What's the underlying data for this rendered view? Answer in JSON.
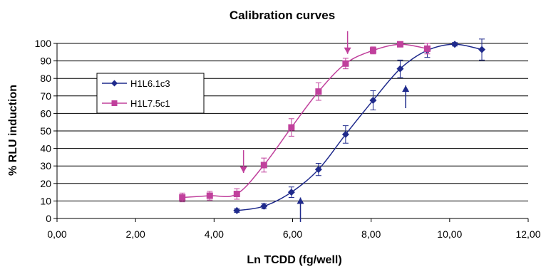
{
  "chart_data": {
    "type": "line",
    "title": "Calibration curves",
    "xlabel": "Ln TCDD (fg/well)",
    "ylabel": "% RLU induction",
    "xlim": [
      0,
      12
    ],
    "ylim": [
      0,
      100
    ],
    "x_ticks": [
      "0,00",
      "2,00",
      "4,00",
      "6,00",
      "8,00",
      "10,00",
      "12,00"
    ],
    "y_ticks": [
      "0",
      "10",
      "20",
      "30",
      "40",
      "50",
      "60",
      "70",
      "80",
      "90",
      "100"
    ],
    "grid": "horizontal",
    "legend_position": "left",
    "series": [
      {
        "name": "H1L6.1c3",
        "color": "#1f2a8c",
        "marker": "diamond",
        "points": [
          {
            "x": 4.58,
            "y": 4.5,
            "err": 1
          },
          {
            "x": 5.27,
            "y": 7,
            "err": 1.5
          },
          {
            "x": 5.97,
            "y": 15,
            "err": 3
          },
          {
            "x": 6.66,
            "y": 28,
            "err": 3.5
          },
          {
            "x": 7.35,
            "y": 48,
            "err": 5
          },
          {
            "x": 8.05,
            "y": 67.5,
            "err": 5.5
          },
          {
            "x": 8.74,
            "y": 85.5,
            "err": 5
          },
          {
            "x": 9.43,
            "y": 96,
            "err": 4
          },
          {
            "x": 10.13,
            "y": 99.5,
            "err": 1
          },
          {
            "x": 10.82,
            "y": 96.5,
            "err": 6
          }
        ]
      },
      {
        "name": "H1L7.5c1",
        "color": "#c0409c",
        "marker": "square",
        "points": [
          {
            "x": 3.19,
            "y": 12,
            "err": 2.5
          },
          {
            "x": 3.89,
            "y": 13,
            "err": 2.5
          },
          {
            "x": 4.58,
            "y": 14,
            "err": 3
          },
          {
            "x": 5.27,
            "y": 30.5,
            "err": 4
          },
          {
            "x": 5.97,
            "y": 52,
            "err": 5
          },
          {
            "x": 6.66,
            "y": 72.5,
            "err": 5
          },
          {
            "x": 7.35,
            "y": 88.5,
            "err": 3
          },
          {
            "x": 8.05,
            "y": 96,
            "err": 2
          },
          {
            "x": 8.74,
            "y": 99.5,
            "err": 1
          },
          {
            "x": 9.43,
            "y": 97,
            "err": 3
          }
        ]
      }
    ],
    "annotations": [
      {
        "type": "arrow-down",
        "color": "#c0409c",
        "x": 4.75,
        "y_from": 39,
        "y_to": 26
      },
      {
        "type": "arrow-down",
        "color": "#c0409c",
        "x": 7.4,
        "y_from": 107,
        "y_to": 94
      },
      {
        "type": "arrow-up",
        "color": "#1f2a8c",
        "x": 6.2,
        "y_from": -2,
        "y_to": 12
      },
      {
        "type": "arrow-up",
        "color": "#1f2a8c",
        "x": 8.88,
        "y_from": 63,
        "y_to": 76
      }
    ]
  }
}
